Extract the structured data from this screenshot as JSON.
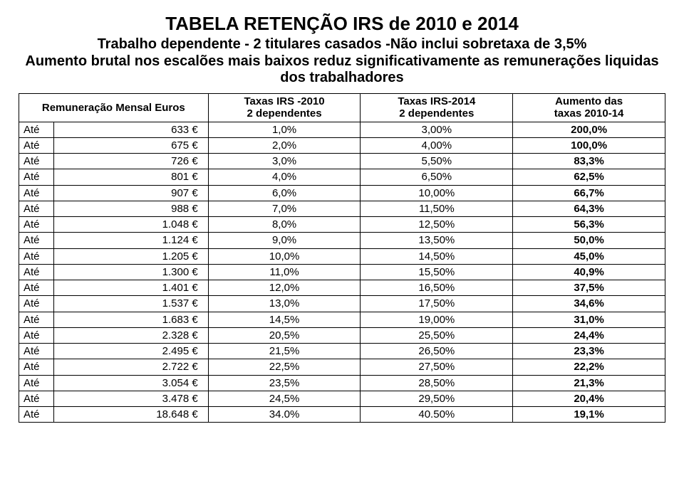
{
  "title": "TABELA RETENÇÃO IRS  de 2010 e 2014",
  "subtitle1": "Trabalho dependente - 2 titulares casados -Não inclui sobretaxa de 3,5%",
  "subtitle2": "Aumento brutal nos escalões mais baixos reduz significativamente as remunerações liquidas dos trabalhadores",
  "colors": {
    "background": "#ffffff",
    "text": "#000000",
    "border": "#000000"
  },
  "fontsize": {
    "title": 26,
    "subtitle": 20,
    "cell": 15
  },
  "table": {
    "columns": [
      "Remuneração Mensal Euros",
      "Taxas IRS -2010\n2 dependentes",
      "Taxas IRS-2014\n2 dependentes",
      "Aumento das\ntaxas 2010-14"
    ],
    "row_label": "Até",
    "rows": [
      {
        "amount": "633 €",
        "t2010": "1,0%",
        "t2014": "3,00%",
        "aug": "200,0%"
      },
      {
        "amount": "675 €",
        "t2010": "2,0%",
        "t2014": "4,00%",
        "aug": "100,0%"
      },
      {
        "amount": "726 €",
        "t2010": "3,0%",
        "t2014": "5,50%",
        "aug": "83,3%"
      },
      {
        "amount": "801 €",
        "t2010": "4,0%",
        "t2014": "6,50%",
        "aug": "62,5%"
      },
      {
        "amount": "907 €",
        "t2010": "6,0%",
        "t2014": "10,00%",
        "aug": "66,7%"
      },
      {
        "amount": "988 €",
        "t2010": "7,0%",
        "t2014": "11,50%",
        "aug": "64,3%"
      },
      {
        "amount": "1.048 €",
        "t2010": "8,0%",
        "t2014": "12,50%",
        "aug": "56,3%"
      },
      {
        "amount": "1.124 €",
        "t2010": "9,0%",
        "t2014": "13,50%",
        "aug": "50,0%"
      },
      {
        "amount": "1.205 €",
        "t2010": "10,0%",
        "t2014": "14,50%",
        "aug": "45,0%"
      },
      {
        "amount": "1.300 €",
        "t2010": "11,0%",
        "t2014": "15,50%",
        "aug": "40,9%"
      },
      {
        "amount": "1.401 €",
        "t2010": "12,0%",
        "t2014": "16,50%",
        "aug": "37,5%"
      },
      {
        "amount": "1.537 €",
        "t2010": "13,0%",
        "t2014": "17,50%",
        "aug": "34,6%"
      },
      {
        "amount": "1.683 €",
        "t2010": "14,5%",
        "t2014": "19,00%",
        "aug": "31,0%"
      },
      {
        "amount": "2.328 €",
        "t2010": "20,5%",
        "t2014": "25,50%",
        "aug": "24,4%"
      },
      {
        "amount": "2.495 €",
        "t2010": "21,5%",
        "t2014": "26,50%",
        "aug": "23,3%"
      },
      {
        "amount": "2.722 €",
        "t2010": "22,5%",
        "t2014": "27,50%",
        "aug": "22,2%"
      },
      {
        "amount": "3.054 €",
        "t2010": "23,5%",
        "t2014": "28,50%",
        "aug": "21,3%"
      },
      {
        "amount": "3.478 €",
        "t2010": "24,5%",
        "t2014": "29,50%",
        "aug": "20,4%"
      },
      {
        "amount": "18.648 €",
        "t2010": "34.0%",
        "t2014": "40.50%",
        "aug": "19,1%"
      }
    ]
  }
}
